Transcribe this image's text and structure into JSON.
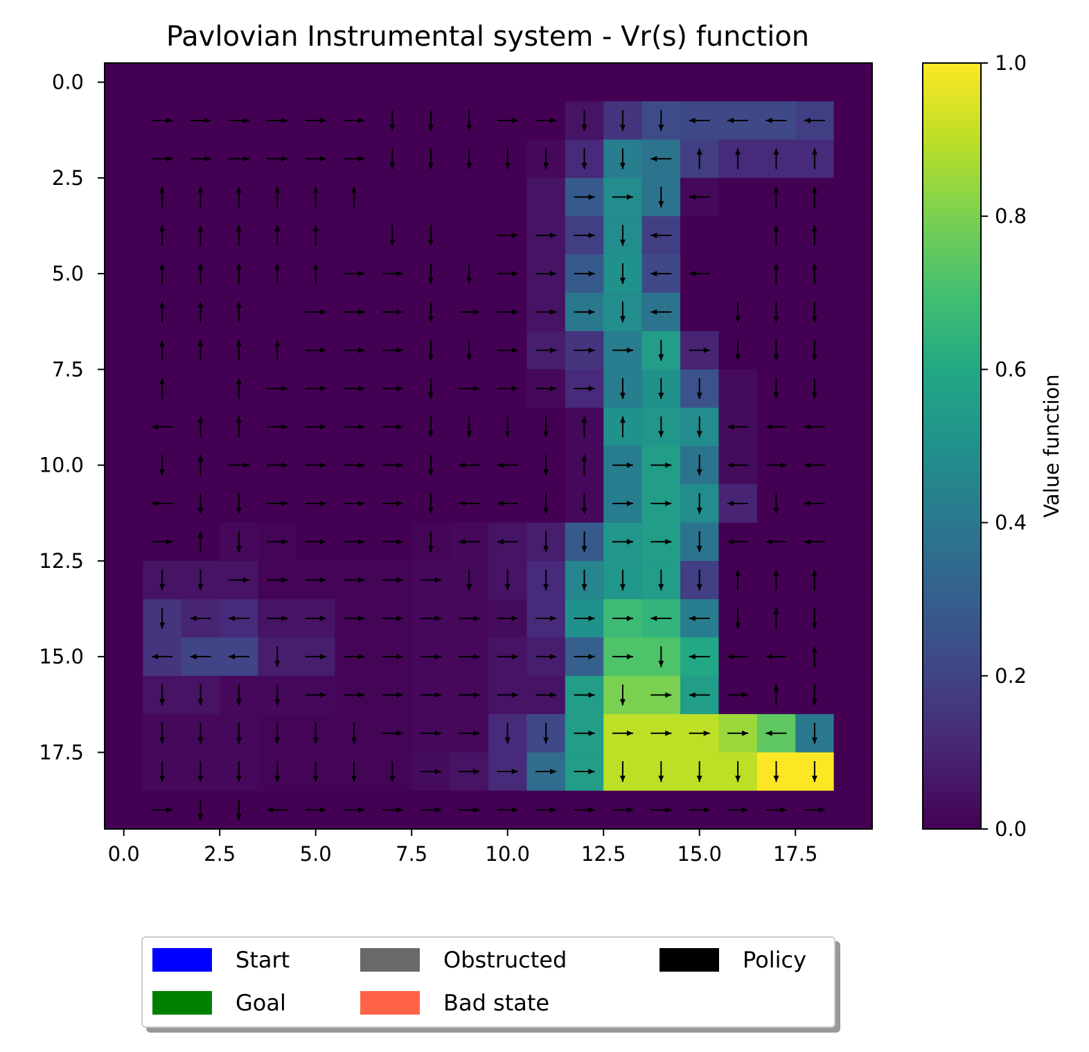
{
  "chart_data": {
    "type": "heatmap",
    "title": "Pavlovian Instrumental system - Vr(s) function",
    "grid_size": 20,
    "x_ticks": [
      "0.0",
      "2.5",
      "5.0",
      "7.5",
      "10.0",
      "12.5",
      "15.0",
      "17.5"
    ],
    "x_tick_values": [
      0,
      2.5,
      5,
      7.5,
      10,
      12.5,
      15,
      17.5
    ],
    "y_ticks": [
      "0.0",
      "2.5",
      "5.0",
      "7.5",
      "10.0",
      "12.5",
      "15.0",
      "17.5"
    ],
    "y_tick_values": [
      0,
      2.5,
      5,
      7.5,
      10,
      12.5,
      15,
      17.5
    ],
    "xlim": [
      -0.5,
      19.5
    ],
    "ylim": [
      19.5,
      -0.5
    ],
    "colormap": "viridis",
    "colorbar": {
      "label": "Value function",
      "ticks": [
        "0.0",
        "0.2",
        "0.4",
        "0.6",
        "0.8",
        "1.0"
      ],
      "tick_values": [
        0,
        0.2,
        0.4,
        0.6,
        0.8,
        1.0
      ],
      "range": [
        0,
        1
      ]
    },
    "values": [
      "0,0,0,0,0,0,0,0,0,0,0,0,0,0,0,0,0,0,0,0",
      "0,0,0,0,0,0,0,0,0,0,0,0,0.05,0.15,0.23,0.22,0.22,0.22,0.18,0",
      "0,0,0,0,0,0,0,0,0,0,0,0.02,0.12,0.42,0.38,0.18,0.12,0.12,0.12,0",
      "0,0,0,0,0,0,0,0,0,0,0,0.05,0.28,0.48,0.38,0.02,0,0,0,0",
      "0,0,0,0,0,0,0,0,0,0,0,0.05,0.18,0.48,0.18,0,0,0,0,0",
      "0,0,0,0,0,0,0,0,0,0,0,0.05,0.28,0.5,0.22,0,0,0,0,0",
      "0,0,0,0,0,0,0,0,0,0,0,0.05,0.4,0.48,0.38,0,0,0,0,0",
      "0,0,0,0,0,0,0,0,0,0,0,0.08,0.15,0.42,0.55,0.1,0,0,0,0",
      "0,0,0,0,0,0,0,0,0,0,0,0.02,0.12,0.42,0.5,0.25,0.03,0,0,0",
      "0,0,0,0,0,0,0,0,0,0,0,0,0.02,0.5,0.52,0.48,0.03,0,0,0",
      "0,0,0,0,0,0,0,0,0,0,0,0,0.02,0.42,0.55,0.38,0.03,0,0,0",
      "0,0,0,0,0,0,0,0,0,0,0,0,0.02,0.42,0.55,0.48,0.1,0,0,0",
      "0,0,0,0.02,0.01,0,0,0,0.01,0.02,0.05,0.08,0.28,0.52,0.55,0.38,0,0,0,0",
      "0,0.05,0.05,0.05,0.01,0.01,0.01,0.01,0.02,0.02,0.05,0.12,0.45,0.52,0.55,0.18,0,0,0,0",
      "0,0.15,0.1,0.12,0.05,0.05,0.01,0.01,0.02,0.02,0.03,0.12,0.5,0.68,0.65,0.42,0,0,0,0",
      "0,0.15,0.2,0.2,0.08,0.08,0.01,0.01,0.02,0.02,0.05,0.08,0.3,0.72,0.72,0.6,0,0,0,0",
      "0,0.05,0.05,0.02,0.02,0.02,0.01,0.01,0.02,0.02,0.05,0.05,0.55,0.8,0.8,0.55,0,0,0,0",
      "0,0.02,0.02,0.02,0.01,0.01,0.01,0.01,0.02,0.02,0.12,0.22,0.55,0.9,0.9,0.9,0.85,0.75,0.4,0",
      "0,0.02,0.02,0.02,0.01,0.01,0.01,0.01,0.03,0.05,0.12,0.35,0.55,0.9,0.9,0.9,0.9,1,1,0",
      "0,0,0,0,0,0,0,0,0,0,0,0,0,0,0,0,0,0,0,0"
    ],
    "policy_arrows": [
      "..................",
      "RRRRRRDDDRRDDDLLLL",
      "RRRRRRDDDDDDDLUUUU",
      "UUUUUU.....RRDL.UUU",
      "UUUUU.DD.RRRDL..UUU",
      "UUUUURRDDRRRDLL.UUU",
      "UUU.RRRDRRRRDL.DDD",
      "UUUURRRDDRRRRDRDDD",
      "U.URRRRDRRRRDDD.DD",
      "LUURRRRDDDDUUDDLLL",
      "DURRRRRDLLDURRDLRL",
      "LDDRRRRDLLDDRRDLDLL",
      "RUDRRRRDLLDDRRDLLLL",
      "DDRRRRRRDDDDDDDUUUU",
      "DLLRRRRRRRRRRLLDUDU",
      "LLLDRRRRRRRRRDLLLUU",
      "DDDDRRRRRRRRDRLRUDDD",
      "DDDDDDRRRDDRRRRRLDD",
      "DDDDDDDRRRRRDDDDDDD",
      "RDDLRRRRRRRRRRRRRR"
    ],
    "legend": [
      {
        "label": "Start",
        "color": "#0000ff"
      },
      {
        "label": "Obstructed",
        "color": "#696969"
      },
      {
        "label": "Policy",
        "color": "#000000"
      },
      {
        "label": "Goal",
        "color": "#008000"
      },
      {
        "label": "Bad state",
        "color": "#ff6347"
      }
    ]
  }
}
